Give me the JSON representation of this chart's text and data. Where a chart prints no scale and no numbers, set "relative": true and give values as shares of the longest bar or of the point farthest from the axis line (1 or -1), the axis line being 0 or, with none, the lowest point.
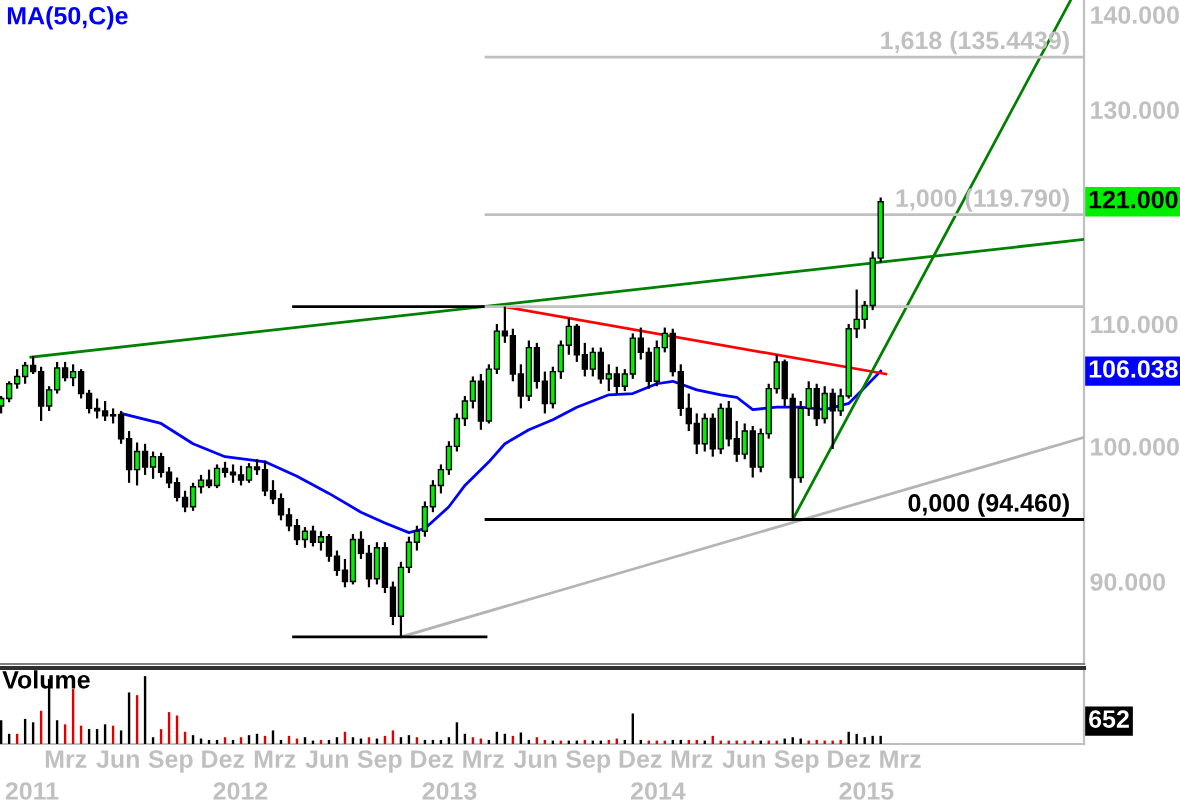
{
  "chart_data": [
    {
      "type": "candlestick",
      "xlim": [
        "2010-11-06",
        "2016-01-17"
      ],
      "ylim": [
        84.4,
        141.6
      ],
      "log": "y",
      "tick_labels": "y",
      "legend": "top left",
      "yticks": [
        {
          "value": 90,
          "label": "90.000"
        },
        {
          "value": 100,
          "label": "100.000"
        },
        {
          "value": 110,
          "label": "110.000"
        },
        {
          "value": 130,
          "label": "130.000"
        },
        {
          "value": 140,
          "label": "140.000"
        }
      ],
      "annotations": [
        "121.000",
        "106.038"
      ],
      "series": [
        {
          "type": "candlestick",
          "x": [
            "2010-11-08",
            "2010-11-22",
            "2010-12-06",
            "2010-12-20",
            "2011-01-03",
            "2011-01-17",
            "2011-01-31",
            "2011-02-14",
            "2011-02-28",
            "2011-03-14",
            "2011-03-28",
            "2011-04-11",
            "2011-04-25",
            "2011-05-09",
            "2011-05-23",
            "2011-06-06",
            "2011-06-20",
            "2011-07-04",
            "2011-07-18",
            "2011-08-01",
            "2011-08-15",
            "2011-08-29",
            "2011-09-12",
            "2011-09-26",
            "2011-10-10",
            "2011-10-24",
            "2011-11-07",
            "2011-11-21",
            "2011-12-05",
            "2011-12-19",
            "2012-01-02",
            "2012-01-16",
            "2012-01-30",
            "2012-02-13",
            "2012-02-27",
            "2012-03-12",
            "2012-03-26",
            "2012-04-09",
            "2012-04-23",
            "2012-05-07",
            "2012-05-21",
            "2012-06-04",
            "2012-06-18",
            "2012-07-02",
            "2012-07-16",
            "2012-07-30",
            "2012-08-13",
            "2012-08-27",
            "2012-09-10",
            "2012-09-24",
            "2012-10-08",
            "2012-10-22",
            "2012-11-05",
            "2012-11-19",
            "2012-12-03",
            "2012-12-17",
            "2012-12-31",
            "2013-01-14",
            "2013-01-28",
            "2013-02-11",
            "2013-02-25",
            "2013-03-11",
            "2013-03-25",
            "2013-04-08",
            "2013-04-22",
            "2013-05-06",
            "2013-05-20",
            "2013-06-03",
            "2013-06-17",
            "2013-07-01",
            "2013-07-15",
            "2013-07-29",
            "2013-08-12",
            "2013-08-26",
            "2013-09-09",
            "2013-09-23",
            "2013-10-07",
            "2013-10-21",
            "2013-11-04",
            "2013-11-18",
            "2013-12-02",
            "2013-12-16",
            "2013-12-30",
            "2014-01-13",
            "2014-01-27",
            "2014-02-10",
            "2014-02-24",
            "2014-03-10",
            "2014-03-24",
            "2014-04-07",
            "2014-04-21",
            "2014-05-05",
            "2014-05-19",
            "2014-06-02",
            "2014-06-16",
            "2014-06-30",
            "2014-07-14",
            "2014-07-28",
            "2014-08-11",
            "2014-08-25",
            "2014-09-08",
            "2014-09-22",
            "2014-10-06",
            "2014-10-20",
            "2014-11-03",
            "2014-11-17",
            "2014-12-01",
            "2014-12-15",
            "2014-12-29",
            "2015-01-12",
            "2015-01-26"
          ],
          "ohlc": [
            [
              103.2,
              104.0,
              102.6,
              103.8
            ],
            [
              103.8,
              105.2,
              103.5,
              105.0
            ],
            [
              105.0,
              106.2,
              104.6,
              105.6
            ],
            [
              105.6,
              106.8,
              105.0,
              106.5
            ],
            [
              106.5,
              107.3,
              105.8,
              106.0
            ],
            [
              106.0,
              106.4,
              102.0,
              103.2
            ],
            [
              103.2,
              104.8,
              102.8,
              104.5
            ],
            [
              104.5,
              106.8,
              104.2,
              106.3
            ],
            [
              106.3,
              106.8,
              105.2,
              105.5
            ],
            [
              105.5,
              106.6,
              104.8,
              106.0
            ],
            [
              106.0,
              106.2,
              103.8,
              104.2
            ],
            [
              104.2,
              104.5,
              102.6,
              103.0
            ],
            [
              103.0,
              103.8,
              102.2,
              102.8
            ],
            [
              102.8,
              103.6,
              102.0,
              102.4
            ],
            [
              102.4,
              103.0,
              101.8,
              102.5
            ],
            [
              102.5,
              102.8,
              100.2,
              100.6
            ],
            [
              100.6,
              101.2,
              97.2,
              98.2
            ],
            [
              98.2,
              100.3,
              97.0,
              99.6
            ],
            [
              99.6,
              100.2,
              97.8,
              98.4
            ],
            [
              98.4,
              99.6,
              97.5,
              99.2
            ],
            [
              99.2,
              99.5,
              97.6,
              98.0
            ],
            [
              98.0,
              98.4,
              96.8,
              97.2
            ],
            [
              97.2,
              97.6,
              95.8,
              96.1
            ],
            [
              96.1,
              96.6,
              95.0,
              95.4
            ],
            [
              95.4,
              97.2,
              95.1,
              96.9
            ],
            [
              96.9,
              97.8,
              96.4,
              97.4
            ],
            [
              97.4,
              98.2,
              96.8,
              97.0
            ],
            [
              97.0,
              98.6,
              96.8,
              98.3
            ],
            [
              98.3,
              98.8,
              97.6,
              98.0
            ],
            [
              98.0,
              98.6,
              97.2,
              97.8
            ],
            [
              97.8,
              98.5,
              97.0,
              97.4
            ],
            [
              97.4,
              98.7,
              97.2,
              98.4
            ],
            [
              98.4,
              99.0,
              97.8,
              98.2
            ],
            [
              98.2,
              98.9,
              96.2,
              96.6
            ],
            [
              96.6,
              97.4,
              95.6,
              96.0
            ],
            [
              96.0,
              96.4,
              94.4,
              94.8
            ],
            [
              94.8,
              95.3,
              93.6,
              94.0
            ],
            [
              94.0,
              94.5,
              92.6,
              93.0
            ],
            [
              93.0,
              93.9,
              92.4,
              93.6
            ],
            [
              93.6,
              94.0,
              92.5,
              92.8
            ],
            [
              92.8,
              93.6,
              92.2,
              93.2
            ],
            [
              93.2,
              93.4,
              91.4,
              91.8
            ],
            [
              91.8,
              92.2,
              90.4,
              90.8
            ],
            [
              90.8,
              91.6,
              89.6,
              90.0
            ],
            [
              90.0,
              93.4,
              89.8,
              93.0
            ],
            [
              93.0,
              93.6,
              91.6,
              92.0
            ],
            [
              92.0,
              92.6,
              89.6,
              90.2
            ],
            [
              90.2,
              92.8,
              89.8,
              92.4
            ],
            [
              92.4,
              92.8,
              89.2,
              89.6
            ],
            [
              89.6,
              90.0,
              87.0,
              87.6
            ],
            [
              87.6,
              91.4,
              86.2,
              91.0
            ],
            [
              91.0,
              93.2,
              90.6,
              92.8
            ],
            [
              92.8,
              94.0,
              92.2,
              93.6
            ],
            [
              93.6,
              95.8,
              93.2,
              95.4
            ],
            [
              95.4,
              97.4,
              95.0,
              97.0
            ],
            [
              97.0,
              98.6,
              96.4,
              98.2
            ],
            [
              98.2,
              100.4,
              97.8,
              100.0
            ],
            [
              100.0,
              102.6,
              99.6,
              102.2
            ],
            [
              102.2,
              104.0,
              101.6,
              103.6
            ],
            [
              103.6,
              105.6,
              103.0,
              105.2
            ],
            [
              105.2,
              105.8,
              101.3,
              102.0
            ],
            [
              102.0,
              106.6,
              101.8,
              106.2
            ],
            [
              106.2,
              110.0,
              105.8,
              109.4
            ],
            [
              109.4,
              111.5,
              108.4,
              109.0
            ],
            [
              109.0,
              109.6,
              105.2,
              105.8
            ],
            [
              105.8,
              106.6,
              103.0,
              104.0
            ],
            [
              104.0,
              108.6,
              103.6,
              108.0
            ],
            [
              108.0,
              108.4,
              104.6,
              105.2
            ],
            [
              105.2,
              106.0,
              102.6,
              103.4
            ],
            [
              103.4,
              106.4,
              103.0,
              106.0
            ],
            [
              106.0,
              108.6,
              105.4,
              108.2
            ],
            [
              108.2,
              110.5,
              107.4,
              109.8
            ],
            [
              109.8,
              110.0,
              106.8,
              107.4
            ],
            [
              107.4,
              108.4,
              105.6,
              106.2
            ],
            [
              106.2,
              108.0,
              105.6,
              107.6
            ],
            [
              107.6,
              108.0,
              105.0,
              105.4
            ],
            [
              105.4,
              106.6,
              104.4,
              105.8
            ],
            [
              105.8,
              106.4,
              104.2,
              104.8
            ],
            [
              104.8,
              106.2,
              104.4,
              105.8
            ],
            [
              105.8,
              109.2,
              105.4,
              108.8
            ],
            [
              108.8,
              109.7,
              107.0,
              107.6
            ],
            [
              107.6,
              108.0,
              104.6,
              105.2
            ],
            [
              105.2,
              108.6,
              104.8,
              108.0
            ],
            [
              108.0,
              109.7,
              107.6,
              109.2
            ],
            [
              109.2,
              109.6,
              105.6,
              106.0
            ],
            [
              106.0,
              106.6,
              102.4,
              103.0
            ],
            [
              103.0,
              104.2,
              101.2,
              101.8
            ],
            [
              101.8,
              102.6,
              99.4,
              100.2
            ],
            [
              100.2,
              102.6,
              99.6,
              102.2
            ],
            [
              102.2,
              102.6,
              99.2,
              99.8
            ],
            [
              99.8,
              103.4,
              99.4,
              103.0
            ],
            [
              103.0,
              103.6,
              100.0,
              100.6
            ],
            [
              100.6,
              102.0,
              98.8,
              99.4
            ],
            [
              99.4,
              101.8,
              99.0,
              101.2
            ],
            [
              101.2,
              101.6,
              97.6,
              98.4
            ],
            [
              98.4,
              101.4,
              98.0,
              101.0
            ],
            [
              101.0,
              105.0,
              100.6,
              104.6
            ],
            [
              104.6,
              107.4,
              104.2,
              106.8
            ],
            [
              106.8,
              107.0,
              103.2,
              103.8
            ],
            [
              103.8,
              104.2,
              94.46,
              97.6
            ],
            [
              97.6,
              103.6,
              97.2,
              103.0
            ],
            [
              103.0,
              105.2,
              102.4,
              104.6
            ],
            [
              104.6,
              105.0,
              101.6,
              102.2
            ],
            [
              102.2,
              104.8,
              101.8,
              104.2
            ],
            [
              104.2,
              104.6,
              99.8,
              102.8
            ],
            [
              102.8,
              104.6,
              102.4,
              104.0
            ],
            [
              104.0,
              110.0,
              103.8,
              109.6
            ],
            [
              109.6,
              113.0,
              108.8,
              110.4
            ],
            [
              110.4,
              112.0,
              109.6,
              111.6
            ],
            [
              111.6,
              116.4,
              111.2,
              115.8
            ],
            [
              115.8,
              121.4,
              115.4,
              121.0
            ]
          ],
          "colors": [
            "#00ee00",
            "#00ee00",
            "#00ee00",
            "#00ee00",
            "#000000",
            "#000000",
            "#00ee00",
            "#00ee00",
            "#000000",
            "#00ee00",
            "#000000",
            "#000000",
            "#000000",
            "#000000",
            "#00ee00",
            "#000000",
            "#000000",
            "#00ee00",
            "#000000",
            "#00ee00",
            "#000000",
            "#000000",
            "#000000",
            "#000000",
            "#00ee00",
            "#00ee00",
            "#000000",
            "#00ee00",
            "#000000",
            "#000000",
            "#000000",
            "#00ee00",
            "#000000",
            "#000000",
            "#000000",
            "#000000",
            "#000000",
            "#000000",
            "#00ee00",
            "#000000",
            "#00ee00",
            "#000000",
            "#000000",
            "#000000",
            "#00ee00",
            "#000000",
            "#000000",
            "#00ee00",
            "#000000",
            "#000000",
            "#00ee00",
            "#00ee00",
            "#00ee00",
            "#00ee00",
            "#00ee00",
            "#00ee00",
            "#00ee00",
            "#00ee00",
            "#00ee00",
            "#00ee00",
            "#000000",
            "#00ee00",
            "#00ee00",
            "#000000",
            "#000000",
            "#000000",
            "#00ee00",
            "#000000",
            "#000000",
            "#00ee00",
            "#00ee00",
            "#00ee00",
            "#000000",
            "#000000",
            "#00ee00",
            "#000000",
            "#00ee00",
            "#000000",
            "#00ee00",
            "#00ee00",
            "#000000",
            "#000000",
            "#00ee00",
            "#00ee00",
            "#000000",
            "#000000",
            "#000000",
            "#000000",
            "#00ee00",
            "#000000",
            "#00ee00",
            "#000000",
            "#000000",
            "#00ee00",
            "#000000",
            "#00ee00",
            "#00ee00",
            "#00ee00",
            "#000000",
            "#000000",
            "#00ee00",
            "#00ee00",
            "#000000",
            "#00ee00",
            "#000000",
            "#00ee00",
            "#00ee00",
            "#00ee00",
            "#00ee00",
            "#00ee00",
            "#00ee00"
          ]
        },
        {
          "name": "MA(50,C)e",
          "type": "line",
          "color": "#0000ff",
          "x": [
            "2011-06-06",
            "2011-08-15",
            "2011-10-10",
            "2011-12-05",
            "2012-02-13",
            "2012-04-09",
            "2012-06-04",
            "2012-07-30",
            "2012-09-10",
            "2012-10-22",
            "2012-11-19",
            "2012-12-31",
            "2013-01-28",
            "2013-03-11",
            "2013-04-08",
            "2013-05-20",
            "2013-07-01",
            "2013-08-12",
            "2013-10-07",
            "2013-11-18",
            "2013-12-30",
            "2014-01-27",
            "2014-03-10",
            "2014-04-21",
            "2014-05-19",
            "2014-06-16",
            "2014-07-28",
            "2014-09-08",
            "2014-10-20",
            "2014-12-01",
            "2014-12-29",
            "2015-01-26"
          ],
          "values": [
            102.6,
            101.8,
            100.2,
            99.2,
            98.8,
            97.7,
            96.4,
            95.0,
            94.2,
            93.5,
            93.8,
            95.4,
            97.0,
            98.8,
            100.2,
            101.3,
            102.1,
            103.1,
            104.1,
            104.2,
            105.0,
            105.2,
            104.5,
            104.1,
            103.9,
            102.9,
            103.1,
            103.1,
            102.9,
            103.4,
            104.7,
            106.038
          ]
        },
        {
          "type": "line",
          "color": "#008000",
          "x": [
            "2010-12-30",
            "2016-01-17"
          ],
          "values": [
            107.2,
            117.5
          ]
        },
        {
          "type": "line",
          "color": "#ff0000",
          "x": [
            "2013-04-06",
            "2015-02-04"
          ],
          "values": [
            111.5,
            105.8
          ]
        },
        {
          "type": "line",
          "color": "#008000",
          "x": [
            "2014-08-25",
            "2015-12-24"
          ],
          "values": [
            94.46,
            141.5
          ]
        },
        {
          "type": "line",
          "color": "#b4b4b4",
          "x": [
            "2012-10-08",
            "2016-01-17"
          ],
          "values": [
            86.2,
            100.7
          ]
        },
        {
          "type": "line",
          "color": "#000000",
          "x": [
            "2012-04-03",
            "2013-03-06"
          ],
          "values": [
            111.5,
            111.5
          ]
        },
        {
          "type": "line",
          "color": "#000000",
          "x": [
            "2012-04-03",
            "2013-03-06"
          ],
          "values": [
            86.2,
            86.2
          ]
        },
        {
          "type": "line",
          "color": "#c0c0c0",
          "x": [
            "2013-03-06",
            "2016-01-17"
          ],
          "values": [
            111.5,
            111.5
          ]
        },
        {
          "name": "0,000 (94.460)",
          "type": "line",
          "color": "#000000",
          "x": [
            "2013-03-06",
            "2016-01-17"
          ],
          "values": [
            94.46,
            94.46
          ]
        },
        {
          "name": "1,000 (119.790)",
          "type": "line",
          "color": "#c0c0c0",
          "x": [
            "2013-03-06",
            "2016-01-17"
          ],
          "values": [
            119.79,
            119.79
          ]
        },
        {
          "name": "1,618 (135.4439)",
          "type": "line",
          "color": "#c0c0c0",
          "x": [
            "2013-03-06",
            "2016-01-17"
          ],
          "values": [
            135.4439,
            135.4439
          ]
        }
      ]
    },
    {
      "type": "bar",
      "title": "Volume",
      "relative": true,
      "xlim": [
        "2010-11-06",
        "2016-01-17"
      ],
      "xticks": [
        {
          "value": "2011-03-01",
          "label": "Mrz"
        },
        {
          "value": "2011-06-01",
          "label": "Jun"
        },
        {
          "value": "2011-09-01",
          "label": "Sep"
        },
        {
          "value": "2011-12-01",
          "label": "Dez"
        },
        {
          "value": "2012-03-01",
          "label": "Mrz"
        },
        {
          "value": "2012-06-01",
          "label": "Jun"
        },
        {
          "value": "2012-09-01",
          "label": "Sep"
        },
        {
          "value": "2012-12-01",
          "label": "Dez"
        },
        {
          "value": "2013-03-01",
          "label": "Mrz"
        },
        {
          "value": "2013-06-01",
          "label": "Jun"
        },
        {
          "value": "2013-09-01",
          "label": "Sep"
        },
        {
          "value": "2013-12-01",
          "label": "Dez"
        },
        {
          "value": "2014-03-01",
          "label": "Mrz"
        },
        {
          "value": "2014-06-01",
          "label": "Jun"
        },
        {
          "value": "2014-09-01",
          "label": "Sep"
        },
        {
          "value": "2014-12-01",
          "label": "Dez"
        },
        {
          "value": "2015-03-01",
          "label": "Mrz"
        }
      ],
      "x2lim": [
        "2010-11-06",
        "2016-01-17"
      ],
      "x2ticks": [
        {
          "value": "2011-01-01",
          "label": "2011"
        },
        {
          "value": "2012-01-01",
          "label": "2012"
        },
        {
          "value": "2013-01-01",
          "label": "2013"
        },
        {
          "value": "2014-01-01",
          "label": "2014"
        },
        {
          "value": "2015-01-01",
          "label": "2015"
        }
      ],
      "annotations": [
        "652"
      ],
      "x": [
        "2010-11-08",
        "2010-11-22",
        "2010-12-06",
        "2010-12-20",
        "2011-01-03",
        "2011-01-17",
        "2011-01-31",
        "2011-02-14",
        "2011-02-28",
        "2011-03-14",
        "2011-03-28",
        "2011-04-11",
        "2011-04-25",
        "2011-05-09",
        "2011-05-23",
        "2011-06-06",
        "2011-06-20",
        "2011-07-04",
        "2011-07-18",
        "2011-08-01",
        "2011-08-15",
        "2011-08-29",
        "2011-09-12",
        "2011-09-26",
        "2011-10-10",
        "2011-10-24",
        "2011-11-07",
        "2011-11-21",
        "2011-12-05",
        "2011-12-19",
        "2012-01-02",
        "2012-01-16",
        "2012-01-30",
        "2012-02-13",
        "2012-02-27",
        "2012-03-12",
        "2012-03-26",
        "2012-04-09",
        "2012-04-23",
        "2012-05-07",
        "2012-05-21",
        "2012-06-04",
        "2012-06-18",
        "2012-07-02",
        "2012-07-16",
        "2012-07-30",
        "2012-08-13",
        "2012-08-27",
        "2012-09-10",
        "2012-09-24",
        "2012-10-08",
        "2012-10-22",
        "2012-11-05",
        "2012-11-19",
        "2012-12-03",
        "2012-12-17",
        "2012-12-31",
        "2013-01-14",
        "2013-01-28",
        "2013-02-11",
        "2013-02-25",
        "2013-03-11",
        "2013-03-25",
        "2013-04-08",
        "2013-04-22",
        "2013-05-06",
        "2013-05-20",
        "2013-06-03",
        "2013-06-17",
        "2013-07-01",
        "2013-07-15",
        "2013-07-29",
        "2013-08-12",
        "2013-08-26",
        "2013-09-09",
        "2013-09-23",
        "2013-10-07",
        "2013-10-21",
        "2013-11-04",
        "2013-11-18",
        "2013-12-02",
        "2013-12-16",
        "2013-12-30",
        "2014-01-13",
        "2014-01-27",
        "2014-02-10",
        "2014-02-24",
        "2014-03-10",
        "2014-03-24",
        "2014-04-07",
        "2014-04-21",
        "2014-05-05",
        "2014-05-19",
        "2014-06-02",
        "2014-06-16",
        "2014-06-30",
        "2014-07-14",
        "2014-07-28",
        "2014-08-11",
        "2014-08-25",
        "2014-09-08",
        "2014-09-22",
        "2014-10-06",
        "2014-10-20",
        "2014-11-03",
        "2014-11-17",
        "2014-12-01",
        "2014-12-15",
        "2014-12-29",
        "2015-01-12",
        "2015-01-26"
      ],
      "values": [
        0.35,
        0.15,
        0.15,
        0.37,
        0.32,
        0.49,
        0.96,
        0.35,
        0.29,
        0.81,
        0.27,
        0.22,
        0.22,
        0.29,
        0.27,
        0.2,
        0.76,
        0.72,
        1.0,
        0.1,
        0.22,
        0.47,
        0.42,
        0.18,
        0.13,
        0.08,
        0.06,
        0.06,
        0.1,
        0.06,
        0.1,
        0.13,
        0.15,
        0.12,
        0.2,
        0.06,
        0.12,
        0.08,
        0.1,
        0.05,
        0.06,
        0.06,
        0.1,
        0.18,
        0.1,
        0.08,
        0.1,
        0.08,
        0.12,
        0.2,
        0.1,
        0.13,
        0.1,
        0.06,
        0.06,
        0.06,
        0.1,
        0.32,
        0.15,
        0.1,
        0.08,
        0.06,
        0.18,
        0.15,
        0.12,
        0.17,
        0.06,
        0.1,
        0.06,
        0.05,
        0.05,
        0.05,
        0.05,
        0.06,
        0.05,
        0.05,
        0.06,
        0.08,
        0.06,
        0.45,
        0.06,
        0.05,
        0.05,
        0.05,
        0.06,
        0.06,
        0.06,
        0.06,
        0.05,
        0.12,
        0.05,
        0.05,
        0.05,
        0.05,
        0.05,
        0.05,
        0.05,
        0.05,
        0.08,
        0.1,
        0.08,
        0.05,
        0.06,
        0.05,
        0.05,
        0.06,
        0.18,
        0.15,
        0.1,
        0.12,
        0.12
      ],
      "colors": [
        "#000000",
        "#000000",
        "#e00000",
        "#000000",
        "#000000",
        "#e00000",
        "#000000",
        "#000000",
        "#e00000",
        "#e00000",
        "#e00000",
        "#000000",
        "#000000",
        "#000000",
        "#e00000",
        "#000000",
        "#000000",
        "#e00000",
        "#000000",
        "#000000",
        "#e00000",
        "#e00000",
        "#e00000",
        "#e00000",
        "#000000",
        "#000000",
        "#000000",
        "#000000",
        "#e00000",
        "#000000",
        "#e00000",
        "#000000",
        "#000000",
        "#e00000",
        "#000000",
        "#000000",
        "#e00000",
        "#e00000",
        "#000000",
        "#000000",
        "#e00000",
        "#000000",
        "#000000",
        "#e00000",
        "#000000",
        "#000000",
        "#e00000",
        "#000000",
        "#e00000",
        "#e00000",
        "#000000",
        "#000000",
        "#e00000",
        "#000000",
        "#000000",
        "#000000",
        "#000000",
        "#000000",
        "#000000",
        "#e00000",
        "#e00000",
        "#000000",
        "#000000",
        "#000000",
        "#e00000",
        "#000000",
        "#000000",
        "#e00000",
        "#e00000",
        "#000000",
        "#e00000",
        "#000000",
        "#000000",
        "#e00000",
        "#000000",
        "#000000",
        "#e00000",
        "#e00000",
        "#000000",
        "#000000",
        "#000000",
        "#e00000",
        "#e00000",
        "#e00000",
        "#000000",
        "#000000",
        "#e00000",
        "#e00000",
        "#000000",
        "#e00000",
        "#e00000",
        "#e00000",
        "#e00000",
        "#e00000",
        "#e00000",
        "#000000",
        "#e00000",
        "#e00000",
        "#000000",
        "#000000",
        "#000000",
        "#e00000",
        "#e00000",
        "#e00000",
        "#e00000",
        "#e00000",
        "#000000",
        "#000000",
        "#000000",
        "#000000",
        "#000000"
      ]
    }
  ]
}
